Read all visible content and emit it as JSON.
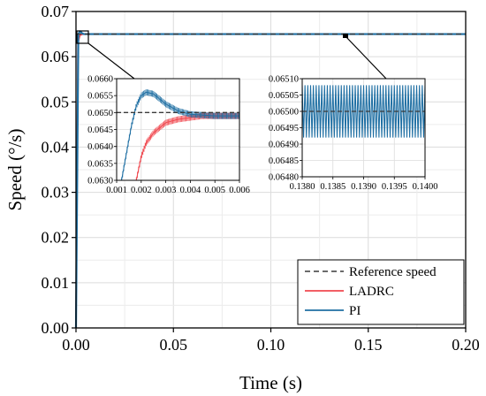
{
  "colors": {
    "reference": "#3a3a3a",
    "ladrc": "#f0484f",
    "pi": "#1f6fa3",
    "grid": "#dcdcdc",
    "axis": "#000000"
  },
  "chart_data": [
    {
      "id": "main",
      "type": "line",
      "xlabel": "Time (s)",
      "ylabel": "Speed (°/s)",
      "xlim": [
        0,
        0.2
      ],
      "ylim": [
        0,
        0.07
      ],
      "xticks": [
        0.0,
        0.05,
        0.1,
        0.15,
        0.2
      ],
      "xtick_labels": [
        "0.00",
        "0.05",
        "0.10",
        "0.15",
        "0.20"
      ],
      "yticks": [
        0.0,
        0.01,
        0.02,
        0.03,
        0.04,
        0.05,
        0.06,
        0.07
      ],
      "ytick_labels": [
        "0.00",
        "0.01",
        "0.02",
        "0.03",
        "0.04",
        "0.05",
        "0.06",
        "0.07"
      ],
      "grid": true,
      "legend_position": "bottom-right",
      "series": [
        {
          "name": "Reference speed",
          "style": "dashed",
          "x": [
            0,
            0.2
          ],
          "y": [
            0.065,
            0.065
          ]
        },
        {
          "name": "LADRC",
          "style": "solid",
          "x": [
            0,
            0.001,
            0.002,
            0.003,
            0.004,
            0.006,
            0.2
          ],
          "y": [
            0,
            0.063,
            0.0647,
            0.0649,
            0.065,
            0.065,
            0.065
          ]
        },
        {
          "name": "PI",
          "style": "solid",
          "x": [
            0,
            0.0012,
            0.002,
            0.0025,
            0.003,
            0.004,
            0.006,
            0.2
          ],
          "y": [
            0,
            0.065,
            0.0656,
            0.0655,
            0.0652,
            0.065,
            0.065,
            0.065
          ]
        }
      ]
    },
    {
      "id": "inset-start",
      "type": "line",
      "xlim": [
        0.001,
        0.006
      ],
      "ylim": [
        0.063,
        0.066
      ],
      "xticks": [
        0.001,
        0.002,
        0.003,
        0.004,
        0.005,
        0.006
      ],
      "xtick_labels": [
        "0.001",
        "0.002",
        "0.003",
        "0.004",
        "0.005",
        "0.006"
      ],
      "yticks": [
        0.063,
        0.0635,
        0.064,
        0.0645,
        0.065,
        0.0655,
        0.066
      ],
      "ytick_labels": [
        "0.0630",
        "0.0635",
        "0.0640",
        "0.0645",
        "0.0650",
        "0.0655",
        "0.0660"
      ],
      "grid": true,
      "series": [
        {
          "name": "Reference speed",
          "x": [
            0.001,
            0.006
          ],
          "y": [
            0.065,
            0.065
          ]
        },
        {
          "name": "LADRC",
          "x": [
            0.0018,
            0.002,
            0.0022,
            0.0025,
            0.003,
            0.0035,
            0.004,
            0.0045,
            0.005,
            0.006
          ],
          "y": [
            0.063,
            0.0637,
            0.0641,
            0.0644,
            0.0647,
            0.0648,
            0.06485,
            0.0649,
            0.0649,
            0.0649
          ]
        },
        {
          "name": "PI",
          "x": [
            0.0012,
            0.0014,
            0.0016,
            0.0018,
            0.002,
            0.0022,
            0.0025,
            0.003,
            0.0035,
            0.004,
            0.005,
            0.006
          ],
          "y": [
            0.063,
            0.0638,
            0.0646,
            0.0652,
            0.0655,
            0.0656,
            0.06555,
            0.06525,
            0.06505,
            0.06495,
            0.0649,
            0.0649
          ]
        }
      ]
    },
    {
      "id": "inset-steady",
      "type": "line",
      "xlim": [
        0.138,
        0.14
      ],
      "ylim": [
        0.0648,
        0.0651
      ],
      "xticks": [
        0.138,
        0.1385,
        0.139,
        0.1395,
        0.14
      ],
      "xtick_labels": [
        "0.1380",
        "0.1385",
        "0.1390",
        "0.1395",
        "0.1400"
      ],
      "yticks": [
        0.0648,
        0.06485,
        0.0649,
        0.06495,
        0.065,
        0.06505,
        0.0651
      ],
      "ytick_labels": [
        "0.06480",
        "0.06485",
        "0.06490",
        "0.06495",
        "0.06500",
        "0.06505",
        "0.06510"
      ],
      "grid": true,
      "series": [
        {
          "name": "Reference speed",
          "x": [
            0.138,
            0.14
          ],
          "y": [
            0.065,
            0.065
          ]
        },
        {
          "name": "PI",
          "oscillation": {
            "center": 0.065,
            "amplitude": 8e-05,
            "cycles": 44
          }
        }
      ]
    }
  ]
}
